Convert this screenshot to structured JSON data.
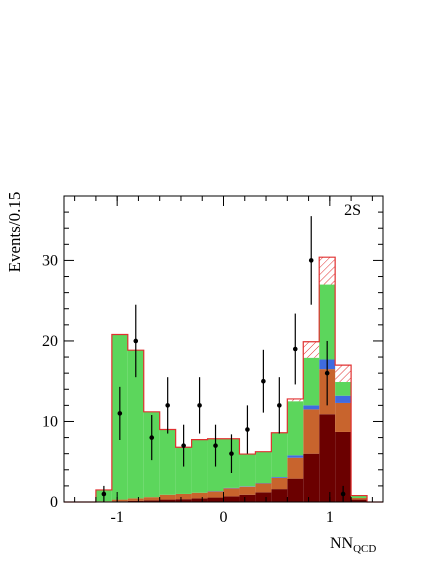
{
  "chart_data": {
    "type": "bar",
    "stacked": true,
    "label": "2S",
    "ylabel": "Events/0.15",
    "xlabel": "NN",
    "xlabel_sub": "QCD",
    "xlim": [
      -1.5,
      1.5
    ],
    "ylim": [
      0,
      38
    ],
    "xticks": [
      -1,
      0,
      1
    ],
    "xtick_labels": [
      "-1",
      "0",
      "1"
    ],
    "yticks": [
      0,
      10,
      20,
      30
    ],
    "ytick_labels": [
      "0",
      "10",
      "20",
      "30"
    ],
    "bin_edges": [
      -1.5,
      -1.35,
      -1.2,
      -1.05,
      -0.9,
      -0.75,
      -0.6,
      -0.45,
      -0.3,
      -0.15,
      0.0,
      0.15,
      0.3,
      0.45,
      0.6,
      0.75,
      0.9,
      1.05,
      1.2,
      1.35,
      1.5
    ],
    "series": [
      {
        "color": "#6b0000",
        "values": [
          0,
          0,
          0.05,
          0.1,
          0.15,
          0.2,
          0.3,
          0.35,
          0.45,
          0.55,
          0.7,
          0.9,
          1.2,
          1.6,
          2.9,
          6.0,
          10.9,
          8.7,
          0.3,
          0
        ]
      },
      {
        "color": "#c8642d",
        "values": [
          0,
          0,
          0.05,
          0.2,
          0.3,
          0.4,
          0.6,
          0.65,
          0.7,
          0.75,
          1.0,
          1.0,
          1.1,
          1.4,
          2.6,
          5.5,
          5.6,
          3.6,
          0.2,
          0
        ]
      },
      {
        "color": "#3f6be0",
        "values": [
          0,
          0,
          0,
          0,
          0,
          0,
          0,
          0,
          0,
          0.05,
          0.05,
          0.05,
          0.05,
          0.1,
          0.3,
          0.5,
          1.2,
          0.9,
          0,
          0
        ]
      },
      {
        "color": "#5cd65c",
        "values": [
          0,
          0,
          1.4,
          20.5,
          18.4,
          10.6,
          8.1,
          5.8,
          6.6,
          6.5,
          6.1,
          4.0,
          3.9,
          5.5,
          6.7,
          5.9,
          9.3,
          1.7,
          0.3,
          0
        ]
      },
      {
        "color": "hatched-red",
        "values": [
          0,
          0,
          0,
          0,
          0,
          0,
          0,
          0,
          0,
          0,
          0,
          0,
          0,
          0,
          0.3,
          2.0,
          3.4,
          2.1,
          0,
          0
        ]
      }
    ],
    "data_points": {
      "x": [
        -1.125,
        -0.975,
        -0.825,
        -0.675,
        -0.525,
        -0.375,
        -0.225,
        -0.075,
        0.075,
        0.225,
        0.375,
        0.525,
        0.675,
        0.825,
        0.975,
        1.125
      ],
      "y": [
        1,
        11,
        20,
        8,
        12,
        7,
        12,
        7,
        6,
        9,
        15,
        12,
        19,
        30,
        16,
        1
      ],
      "err": [
        1.0,
        3.3,
        4.5,
        2.8,
        3.5,
        2.6,
        3.5,
        2.6,
        2.4,
        3.0,
        3.9,
        3.5,
        4.4,
        5.5,
        4.0,
        1.0
      ]
    }
  }
}
